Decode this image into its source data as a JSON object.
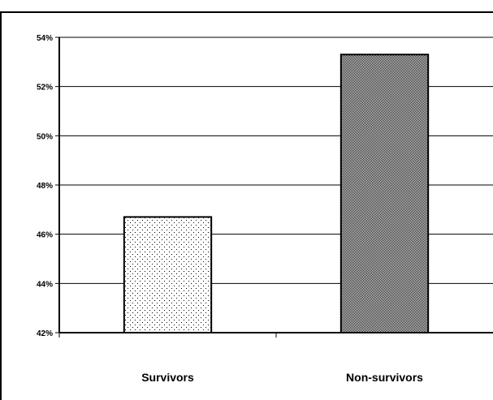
{
  "chart_data": {
    "type": "bar",
    "title": "",
    "xlabel": "",
    "ylabel": "",
    "categories": [
      "Survivors",
      "Non-survivors"
    ],
    "values": [
      46.7,
      53.3
    ],
    "ylim": [
      42,
      54
    ],
    "yticks": [
      42,
      44,
      46,
      48,
      50,
      52,
      54
    ],
    "ytick_labels": [
      "42%",
      "44%",
      "46%",
      "48%",
      "50%",
      "52%",
      "54%"
    ],
    "grid": true,
    "legend": "none",
    "bar_patterns": [
      "sparse-dots",
      "dense-dots"
    ],
    "colors": {
      "axis": "#000000",
      "grid": "#000000",
      "bar_fill": "#ffffff",
      "pattern_dot": "#000000"
    }
  }
}
